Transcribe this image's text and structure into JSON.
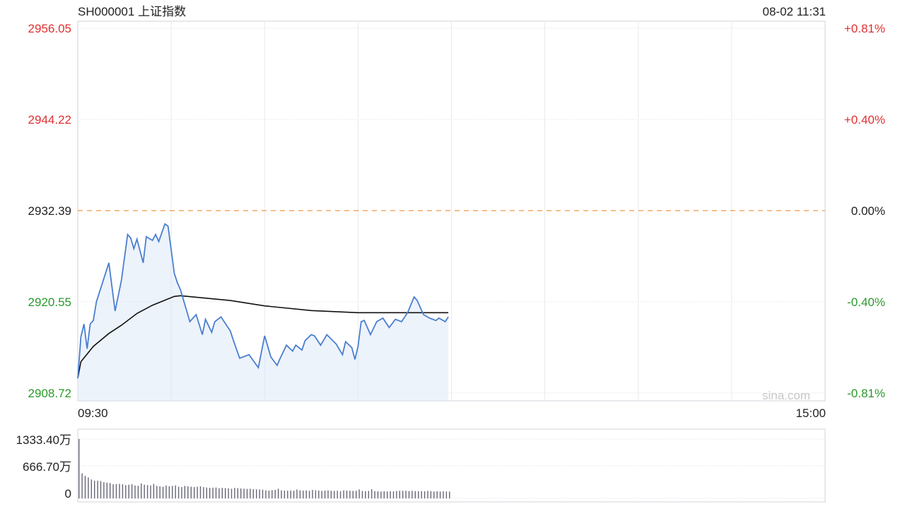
{
  "header": {
    "symbol_title": "SH000001 上证指数",
    "timestamp": "08-02 11:31"
  },
  "watermark": "sina.com",
  "colors": {
    "up": "#e03030",
    "down": "#2a9a2a",
    "flat": "#222222",
    "price_line": "#4a7fcf",
    "avg_line": "#111111",
    "prev_close_line": "#f0a050",
    "volume_bar": "#666677"
  },
  "chart_data": [
    {
      "type": "line",
      "title": "SH000001 上证指数",
      "ylim": [
        2908.72,
        2956.05
      ],
      "prev_close": 2932.39,
      "y_ticks_left": [
        "2956.05",
        "2944.22",
        "2932.39",
        "2920.55",
        "2908.72"
      ],
      "y_ticks_right": [
        "+0.81%",
        "+0.40%",
        "0.00%",
        "-0.40%",
        "-0.81%"
      ],
      "x_ticks": [
        "09:30",
        "15:00"
      ],
      "x_range_minutes": [
        0,
        240
      ],
      "x_unit": "trading minutes since 09:30",
      "grid": true,
      "series": [
        {
          "role": "price",
          "x": [
            0,
            1,
            2,
            3,
            4,
            5,
            6,
            10,
            12,
            14,
            16,
            17,
            18,
            19,
            21,
            22,
            24,
            25,
            26,
            28,
            29,
            31,
            32,
            33,
            36,
            38,
            40,
            41,
            43,
            44,
            46,
            49,
            50,
            52,
            55,
            58,
            60,
            62,
            64,
            65,
            67,
            69,
            70,
            72,
            73,
            75,
            76,
            78,
            80,
            83,
            85,
            86,
            88,
            89,
            90,
            91,
            92,
            94,
            96,
            98,
            100,
            102,
            104,
            106,
            108,
            109,
            111,
            113,
            115,
            116,
            118,
            119
          ],
          "values": [
            2910.64,
            2915.99,
            2917.68,
            2914.47,
            2917.68,
            2918.14,
            2920.58,
            2925.62,
            2919.36,
            2923.33,
            2929.29,
            2928.83,
            2927.46,
            2928.69,
            2925.62,
            2928.99,
            2928.53,
            2929.29,
            2928.38,
            2930.67,
            2930.37,
            2924.25,
            2923.03,
            2922.11,
            2917.98,
            2918.9,
            2916.3,
            2918.29,
            2916.61,
            2917.98,
            2918.6,
            2916.76,
            2915.53,
            2913.24,
            2913.7,
            2912.02,
            2916.15,
            2913.4,
            2912.32,
            2913.24,
            2914.93,
            2914.16,
            2914.93,
            2914.31,
            2915.53,
            2916.3,
            2916.15,
            2914.93,
            2916.3,
            2915.08,
            2913.7,
            2915.38,
            2914.62,
            2913.09,
            2914.77,
            2917.98,
            2918.14,
            2916.3,
            2917.98,
            2918.44,
            2917.22,
            2918.29,
            2917.98,
            2919.2,
            2921.19,
            2920.73,
            2918.9,
            2918.44,
            2918.14,
            2918.44,
            2917.98,
            2918.6
          ]
        },
        {
          "role": "average",
          "x": [
            0,
            1,
            5,
            10,
            14,
            19,
            24,
            31,
            33,
            49,
            60,
            75,
            90,
            119
          ],
          "values": [
            2910.64,
            2912.78,
            2914.77,
            2916.45,
            2917.52,
            2919.05,
            2920.12,
            2921.26,
            2921.35,
            2920.73,
            2920.03,
            2919.42,
            2919.15,
            2919.15
          ]
        }
      ]
    },
    {
      "type": "bar",
      "y_ticks": [
        "1333.40万",
        "666.70万",
        "0"
      ],
      "ylim": [
        0,
        1333.4
      ],
      "unit": "万",
      "values": [
        1333,
        480,
        420,
        380,
        330,
        300,
        300,
        290,
        260,
        250,
        240,
        210,
        215,
        220,
        210,
        190,
        200,
        210,
        180,
        170,
        230,
        200,
        190,
        180,
        220,
        170,
        160,
        150,
        180,
        160,
        170,
        180,
        150,
        140,
        170,
        160,
        150,
        140,
        150,
        160,
        140,
        130,
        120,
        125,
        130,
        110,
        120,
        115,
        110,
        100,
        120,
        110,
        105,
        100,
        95,
        100,
        90,
        85,
        80,
        75,
        60,
        55,
        65,
        70,
        100,
        60,
        55,
        50,
        55,
        50,
        80,
        60,
        55,
        60,
        50,
        70,
        60,
        55,
        45,
        55,
        60,
        50,
        45,
        50,
        40,
        60,
        55,
        50,
        45,
        50,
        80,
        45,
        40,
        45,
        90,
        40,
        35,
        30,
        35,
        30,
        40,
        35,
        45,
        50,
        45,
        50,
        40,
        45,
        40,
        35,
        40,
        35,
        45,
        40,
        30,
        35,
        30,
        35,
        30,
        30
      ]
    }
  ]
}
